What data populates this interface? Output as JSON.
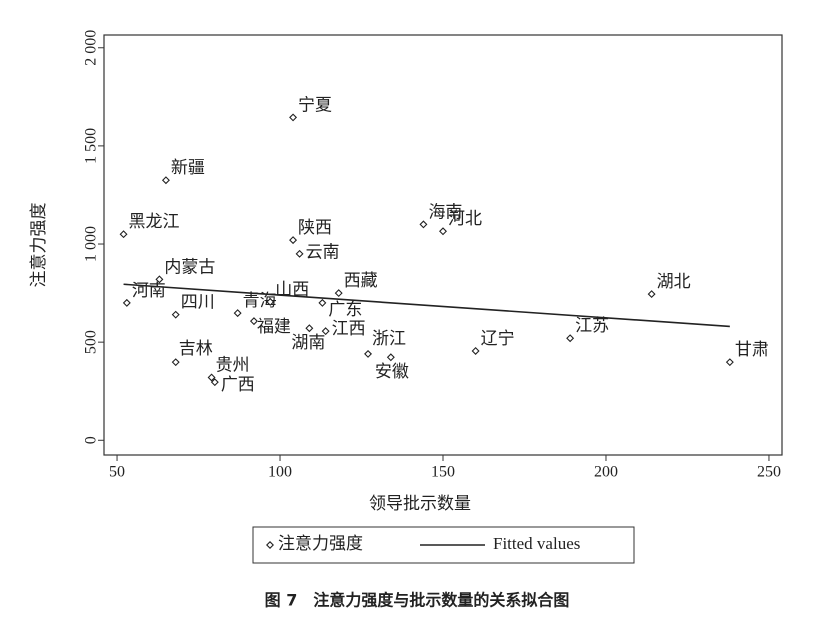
{
  "chart_data": {
    "type": "scatter",
    "title": "图 7　注意力强度与批示数量的关系拟合图",
    "x_label": "领导批示数量",
    "y_label": "注意力强度",
    "xlim": [
      46,
      254
    ],
    "ylim": [
      -75,
      2065
    ],
    "xticks": [
      50,
      100,
      150,
      200,
      250
    ],
    "yticks": [
      0,
      500,
      {
        "value": 1000,
        "label": "1 000"
      },
      {
        "value": 1500,
        "label": "1 500"
      },
      {
        "value": 2000,
        "label": "2 000"
      }
    ],
    "series": [
      {
        "name": "注意力强度",
        "color": "#222222",
        "marker": "diamond",
        "point_labels": [
          "宁夏",
          "新疆",
          "黑龙江",
          "海南",
          "河北",
          "陕西",
          "云南",
          "内蒙古",
          "西藏",
          "湖北",
          "河南",
          "四川",
          "青海",
          "山西",
          "广东",
          "福建",
          "湖南",
          "江西",
          "浙江",
          "安徽",
          "辽宁",
          "江苏",
          "甘肃",
          "吉林",
          "贵州",
          "广西"
        ],
        "x": [
          104,
          65,
          52,
          144,
          150,
          104,
          106,
          63,
          118,
          214,
          53,
          68,
          87,
          97,
          113,
          92,
          109,
          114,
          127,
          134,
          160,
          189,
          238,
          68,
          79,
          80
        ],
        "values": [
          1645,
          1325,
          1050,
          1100,
          1065,
          1020,
          950,
          820,
          750,
          745,
          700,
          640,
          648,
          705,
          700,
          607,
          571,
          556,
          440,
          423,
          455,
          520,
          398,
          398,
          320,
          296
        ]
      },
      {
        "name": "Fitted values",
        "color": "#222222",
        "marker": "line",
        "x": [
          52,
          238
        ],
        "values": [
          795,
          580
        ]
      }
    ]
  }
}
